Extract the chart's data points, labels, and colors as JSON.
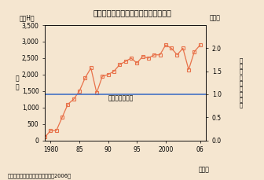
{
  "title": "南極上空のオゾンホールの面積の推移",
  "ylabel_left_unit": "（万H）",
  "ylabel_right_unit": "（倍）",
  "ylabel_left_text": "面\n積",
  "ylabel_right_text": "南\n極\n大\n陸\nと\nの\n面\n積\n比",
  "xlabel": "（年）",
  "source": "出典：気象庁『オゾン層観測報告2006』",
  "background_color": "#f5e6d0",
  "line_color": "#e8724a",
  "marker_color": "#e8724a",
  "hline_color": "#4472c4",
  "hline_value": 1400,
  "hline_label": "南極大陸の面積",
  "ylim_left": [
    0,
    3500
  ],
  "ylim_right": [
    0,
    2.5
  ],
  "yticks_left": [
    0,
    500,
    1000,
    1500,
    2000,
    2500,
    3000,
    3500
  ],
  "yticks_right": [
    0.0,
    0.5,
    1.0,
    1.5,
    2.0
  ],
  "xtick_positions": [
    1980,
    1985,
    1990,
    1995,
    2000,
    2006
  ],
  "xtick_labels": [
    "1980",
    "85",
    "90",
    "95",
    "2000",
    "06"
  ],
  "xlim": [
    1979,
    2007
  ],
  "years": [
    1979,
    1980,
    1981,
    1982,
    1983,
    1984,
    1985,
    1986,
    1987,
    1988,
    1989,
    1990,
    1991,
    1992,
    1993,
    1994,
    1995,
    1996,
    1997,
    1998,
    1999,
    2000,
    2001,
    2002,
    2003,
    2004,
    2005,
    2006
  ],
  "values": [
    100,
    300,
    300,
    700,
    1100,
    1250,
    1500,
    1900,
    2200,
    1450,
    1950,
    2000,
    2100,
    2300,
    2400,
    2500,
    2350,
    2550,
    2500,
    2600,
    2600,
    2900,
    2800,
    2600,
    2800,
    2150,
    2700,
    2900
  ]
}
